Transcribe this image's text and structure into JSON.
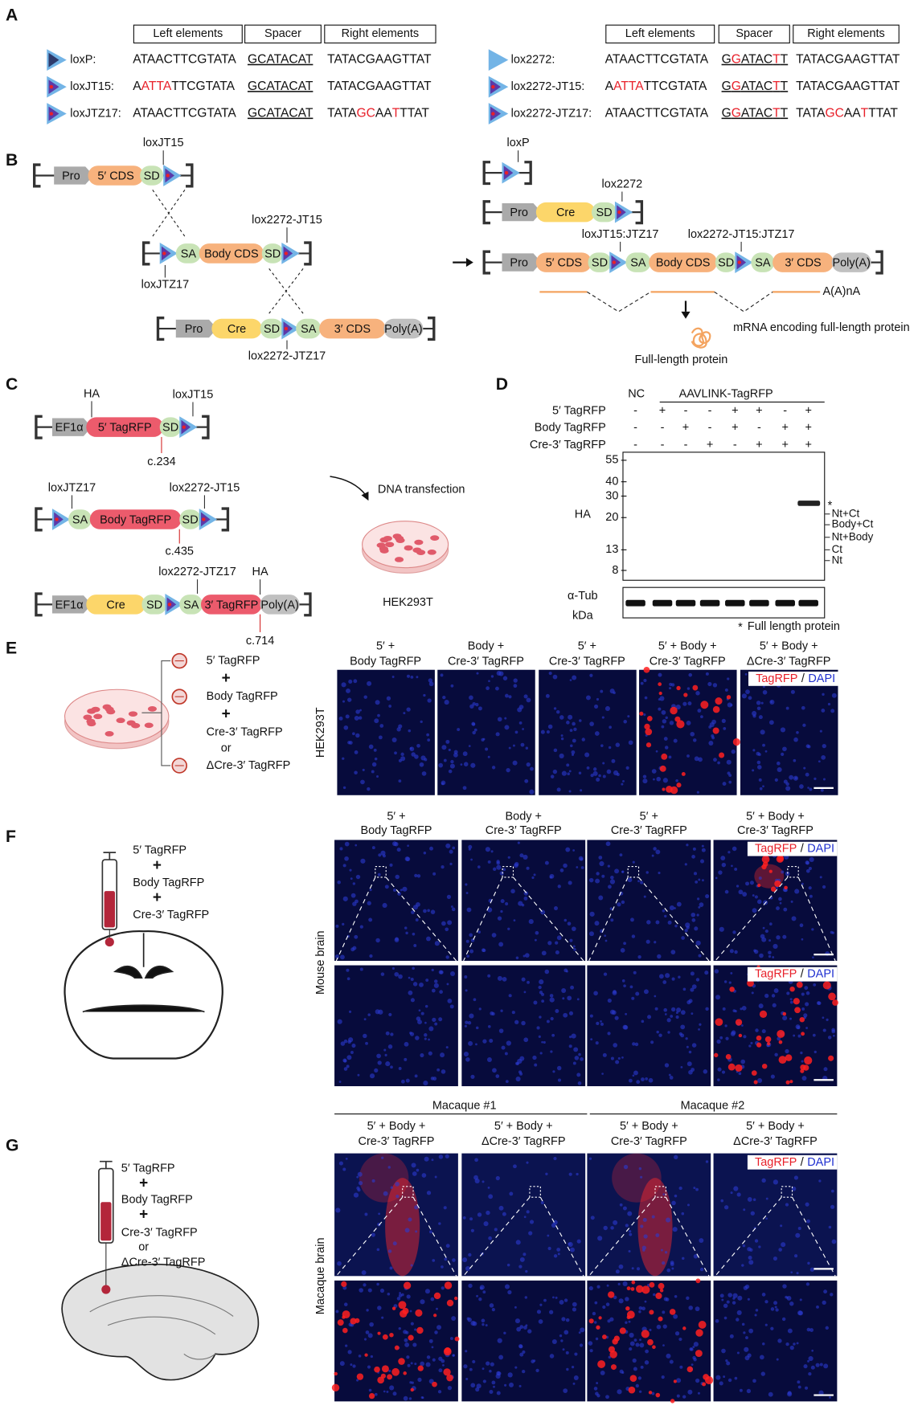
{
  "panel_labels": [
    "A",
    "B",
    "C",
    "D",
    "E",
    "F",
    "G"
  ],
  "panel_a": {
    "headers": [
      "Left elements",
      "Spacer",
      "Right elements"
    ],
    "groups": [
      {
        "rows": [
          {
            "name": "loxP:",
            "left": [
              [
                "ATAACTTCGTATA",
                "#111"
              ]
            ],
            "spacer": [
              [
                "GCATACAT",
                "#111"
              ]
            ],
            "right": [
              [
                "TATACGAAGTTAT",
                "#111"
              ]
            ]
          },
          {
            "name": "loxJT15:",
            "left": [
              [
                "A",
                "#111"
              ],
              [
                "ATTA",
                "#e8202a"
              ],
              [
                "TTCGTATA",
                "#111"
              ]
            ],
            "spacer": [
              [
                "GCATACAT",
                "#111"
              ]
            ],
            "right": [
              [
                "TATACGAAGTTAT",
                "#111"
              ]
            ]
          },
          {
            "name": "loxJTZ17:",
            "left": [
              [
                "ATAACTTCGTATA",
                "#111"
              ]
            ],
            "spacer": [
              [
                "GCATACAT",
                "#111"
              ]
            ],
            "right": [
              [
                "TATA",
                "#111"
              ],
              [
                "GC",
                "#e8202a"
              ],
              [
                "AA",
                "#111"
              ],
              [
                "T",
                "#e8202a"
              ],
              [
                "TTAT",
                "#111"
              ]
            ]
          }
        ]
      },
      {
        "rows": [
          {
            "name": "lox2272:",
            "left": [
              [
                "ATAACTTCGTATA",
                "#111"
              ]
            ],
            "spacer": [
              [
                "G",
                "#111"
              ],
              [
                "G",
                "#e8202a"
              ],
              [
                "ATAC",
                "#111"
              ],
              [
                "T",
                "#e8202a"
              ],
              [
                "T",
                "#111"
              ]
            ],
            "right": [
              [
                "TATACGAAGTTAT",
                "#111"
              ]
            ]
          },
          {
            "name": "lox2272-JT15:",
            "left": [
              [
                "A",
                "#111"
              ],
              [
                "ATTA",
                "#e8202a"
              ],
              [
                "TTCGTATA",
                "#111"
              ]
            ],
            "spacer": [
              [
                "G",
                "#111"
              ],
              [
                "G",
                "#e8202a"
              ],
              [
                "ATAC",
                "#111"
              ],
              [
                "T",
                "#e8202a"
              ],
              [
                "T",
                "#111"
              ]
            ],
            "right": [
              [
                "TATACGAAGTTAT",
                "#111"
              ]
            ]
          },
          {
            "name": "lox2272-JTZ17:",
            "left": [
              [
                "ATAACTTCGTATA",
                "#111"
              ]
            ],
            "spacer": [
              [
                "G",
                "#111"
              ],
              [
                "G",
                "#e8202a"
              ],
              [
                "ATAC",
                "#111"
              ],
              [
                "T",
                "#e8202a"
              ],
              [
                "T",
                "#111"
              ]
            ],
            "right": [
              [
                "TATA",
                "#111"
              ],
              [
                "GC",
                "#e8202a"
              ],
              [
                "AA",
                "#111"
              ],
              [
                "T",
                "#e8202a"
              ],
              [
                "TTAT",
                "#111"
              ]
            ]
          }
        ]
      }
    ]
  },
  "panel_b": {
    "left": [
      {
        "parts": [
          "Pro",
          "5′ CDS",
          "SD"
        ],
        "sites": [
          "loxJT15"
        ]
      },
      {
        "parts": [
          "SA",
          "Body CDS",
          "SD"
        ],
        "sites": [
          "lox2272-JT15",
          "loxJTZ17"
        ]
      },
      {
        "parts": [
          "Pro",
          "Cre",
          "SD",
          "SA",
          "3′ CDS",
          "Poly(A)"
        ],
        "sites": [
          "lox2272-JTZ17"
        ]
      }
    ],
    "right": [
      {
        "sites": [
          "loxP"
        ]
      },
      {
        "parts": [
          "Pro",
          "Cre",
          "SD"
        ],
        "sites": [
          "lox2272"
        ]
      },
      {
        "parts": [
          "Pro",
          "5′ CDS",
          "SD",
          "SA",
          "Body CDS",
          "SD",
          "SA",
          "3′ CDS",
          "Poly(A)"
        ],
        "sites": [
          "loxJT15:JTZ17",
          "lox2272-JT15:JTZ17"
        ]
      }
    ],
    "tail": "A(A)nA",
    "mrna": "mRNA encoding full-length protein",
    "protein": "Full-length protein"
  },
  "panel_c": {
    "rows": [
      {
        "parts": [
          "EF1α",
          "5′ TagRFP",
          "SD"
        ],
        "sites": [
          "HA",
          "loxJT15"
        ],
        "cut": "c.234"
      },
      {
        "parts": [
          "SA",
          "Body TagRFP",
          "SD"
        ],
        "sites": [
          "loxJTZ17",
          "lox2272-JT15"
        ],
        "cut": "c.435"
      },
      {
        "parts": [
          "EF1α",
          "Cre",
          "SD",
          "SA",
          "3′ TagRFP",
          "Poly(A)"
        ],
        "sites": [
          "lox2272-JTZ17",
          "HA"
        ],
        "cut": "c.714"
      }
    ],
    "step": "DNA transfection",
    "cells": "HEK293T"
  },
  "panel_d": {
    "nc": "NC",
    "group": "AAVLINK-TagRFP",
    "rows": [
      {
        "name": "5′ TagRFP",
        "signs": [
          "-",
          "+",
          "-",
          "-",
          "+",
          "+",
          "-",
          "+"
        ]
      },
      {
        "name": "Body TagRFP",
        "signs": [
          "-",
          "-",
          "+",
          "-",
          "+",
          "-",
          "+",
          "+"
        ]
      },
      {
        "name": "Cre-3′ TagRFP",
        "signs": [
          "-",
          "-",
          "-",
          "+",
          "-",
          "+",
          "+",
          "+"
        ]
      }
    ],
    "blot": "HA",
    "markers": [
      55,
      40,
      30,
      20,
      13,
      8
    ],
    "bands": [
      "Nt+Ct",
      "Body+Ct",
      "Nt+Body",
      "Ct",
      "Nt"
    ],
    "star": "*",
    "loading": "α-Tub",
    "unit": "kDa",
    "footnote": "Full length protein"
  },
  "panel_e": {
    "recipe": [
      "5′ TagRFP",
      "+",
      "Body TagRFP",
      "+",
      "Cre-3′ TagRFP",
      "or",
      "ΔCre-3′ TagRFP"
    ],
    "columns": [
      [
        "5′ +",
        "Body TagRFP"
      ],
      [
        "Body +",
        "Cre-3′ TagRFP"
      ],
      [
        "5′ +",
        "Cre-3′ TagRFP"
      ],
      [
        "5′ + Body +",
        "Cre-3′ TagRFP"
      ],
      [
        "5′ + Body +",
        "ΔCre-3′ TagRFP"
      ]
    ],
    "cell_line": "HEK293T",
    "legend": [
      "TagRFP",
      "/",
      "DAPI"
    ]
  },
  "panel_f": {
    "recipe": [
      "5′ TagRFP",
      "+",
      "Body TagRFP",
      "+",
      "Cre-3′ TagRFP"
    ],
    "columns": [
      [
        "5′ +",
        "Body TagRFP"
      ],
      [
        "Body +",
        "Cre-3′ TagRFP"
      ],
      [
        "5′ +",
        "Cre-3′ TagRFP"
      ],
      [
        "5′ + Body +",
        "Cre-3′ TagRFP"
      ]
    ],
    "tissue": "Mouse brain",
    "legend": [
      "TagRFP",
      "/",
      "DAPI"
    ]
  },
  "panel_g": {
    "recipe": [
      "5′ TagRFP",
      "+",
      "Body TagRFP",
      "+",
      "Cre-3′ TagRFP",
      "or",
      "ΔCre-3′ TagRFP"
    ],
    "groups": [
      "Macaque #1",
      "Macaque #2"
    ],
    "columns": [
      [
        "5′ + Body +",
        "Cre-3′ TagRFP"
      ],
      [
        "5′ + Body +",
        "ΔCre-3′ TagRFP"
      ],
      [
        "5′ + Body +",
        "Cre-3′ TagRFP"
      ],
      [
        "5′ + Body +",
        "ΔCre-3′ TagRFP"
      ]
    ],
    "tissue": "Macaque brain",
    "legend": [
      "TagRFP",
      "/",
      "DAPI"
    ]
  }
}
